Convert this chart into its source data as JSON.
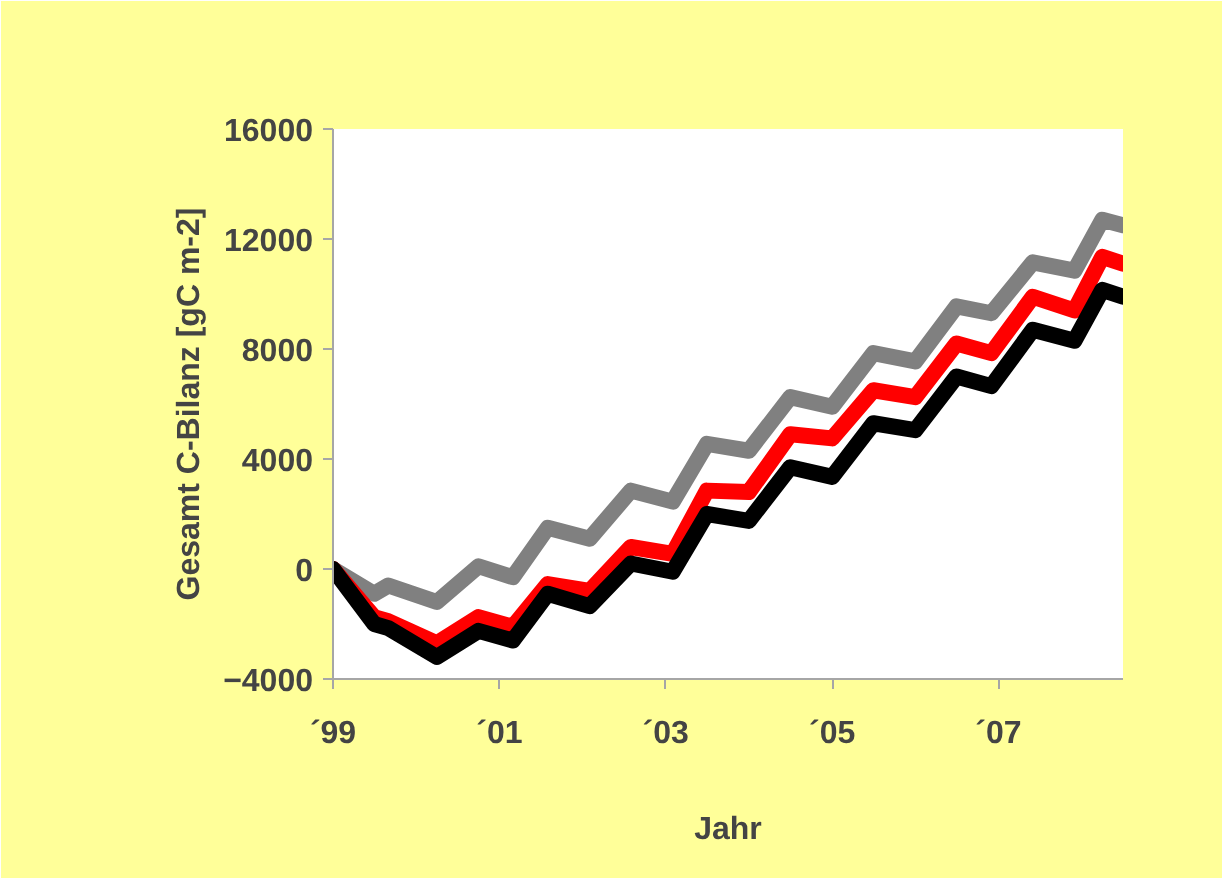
{
  "chart_data": {
    "type": "line",
    "xlabel": "Jahr",
    "ylabel": "Gesamt C-Bilanz [gC m-2]",
    "x": [
      "1999-01",
      "1999-07",
      "1999-09",
      "2000-04",
      "2000-10",
      "2001-03",
      "2001-08",
      "2002-02",
      "2002-08",
      "2003-02",
      "2003-07",
      "2004-01",
      "2004-07",
      "2005-01",
      "2005-07",
      "2006-01",
      "2006-07",
      "2006-12",
      "2007-06",
      "2007-12",
      "2008-04",
      "2008-07"
    ],
    "series": [
      {
        "color": "#808080",
        "values": [
          0,
          -900,
          -600,
          -1200,
          100,
          -300,
          1500,
          1100,
          2850,
          2450,
          4550,
          4300,
          6250,
          5900,
          7850,
          7550,
          9550,
          9300,
          11150,
          10850,
          12700,
          12500
        ]
      },
      {
        "color": "#ff0000",
        "values": [
          0,
          -1750,
          -1900,
          -2700,
          -1750,
          -2100,
          -550,
          -800,
          800,
          550,
          2850,
          2800,
          4900,
          4750,
          6500,
          6250,
          8200,
          7850,
          9900,
          9400,
          11350,
          11100
        ]
      },
      {
        "color": "#000000",
        "values": [
          0,
          -2000,
          -2150,
          -3200,
          -2250,
          -2600,
          -900,
          -1350,
          200,
          -100,
          2000,
          1750,
          3700,
          3350,
          5300,
          5050,
          7000,
          6650,
          8700,
          8300,
          10150,
          9900
        ]
      }
    ],
    "xlim": [
      "1999-01",
      "2008-07"
    ],
    "ylim": [
      -4000,
      16000
    ],
    "xticks": [
      {
        "value": "1999",
        "label": "´99"
      },
      {
        "value": "2001",
        "label": "´01"
      },
      {
        "value": "2003",
        "label": "´03"
      },
      {
        "value": "2005",
        "label": "´05"
      },
      {
        "value": "2007",
        "label": "´07"
      }
    ],
    "yticks": [
      -4000,
      0,
      4000,
      8000,
      12000,
      16000
    ],
    "grid": false,
    "marker": "none",
    "line_style": "solid"
  }
}
